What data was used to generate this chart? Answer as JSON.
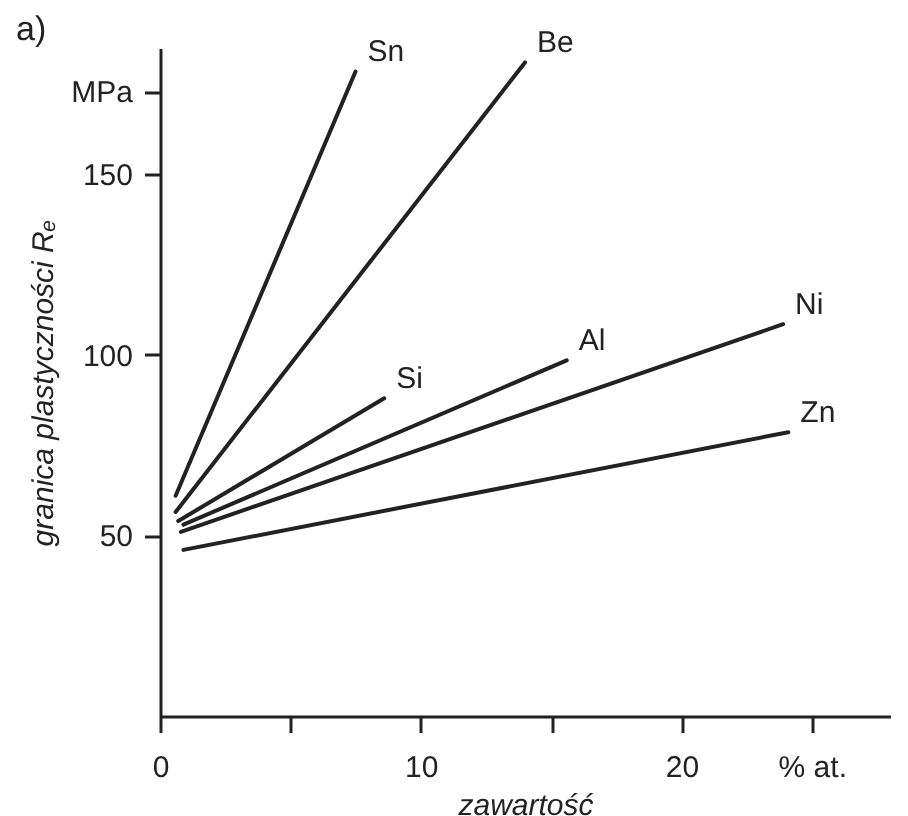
{
  "chart_data": {
    "type": "line",
    "title": "a)",
    "xlabel": "zawartość",
    "ylabel": "granica plastyczności Rₑ",
    "xlim": [
      0,
      28
    ],
    "ylim": [
      0,
      185
    ],
    "xticks": [
      0,
      {
        "value": 5,
        "label": null
      },
      10,
      {
        "value": 15,
        "label": null
      },
      20,
      {
        "value": 25,
        "label": "% at."
      }
    ],
    "yticks": [
      50,
      100,
      150,
      {
        "value": 173,
        "label": "MPa"
      }
    ],
    "grid": false,
    "legend": false,
    "line_style": "solid",
    "marker": "none",
    "series": [
      {
        "name": "Sn",
        "color": "#222222",
        "x": [
          0.6,
          7.5
        ],
        "values": [
          61,
          178.5
        ]
      },
      {
        "name": "Be",
        "color": "#222222",
        "x": [
          0.6,
          14.0
        ],
        "values": [
          56.5,
          181
        ]
      },
      {
        "name": "Si",
        "color": "#222222",
        "x": [
          0.7,
          8.6
        ],
        "values": [
          54,
          88
        ]
      },
      {
        "name": "Al",
        "color": "#222222",
        "x": [
          0.9,
          15.6
        ],
        "values": [
          53,
          98.5
        ]
      },
      {
        "name": "Ni",
        "color": "#222222",
        "x": [
          0.8,
          23.9
        ],
        "values": [
          51,
          108.5
        ]
      },
      {
        "name": "Zn",
        "color": "#222222",
        "x": [
          0.9,
          24.1
        ],
        "values": [
          46,
          78.6
        ]
      }
    ]
  }
}
